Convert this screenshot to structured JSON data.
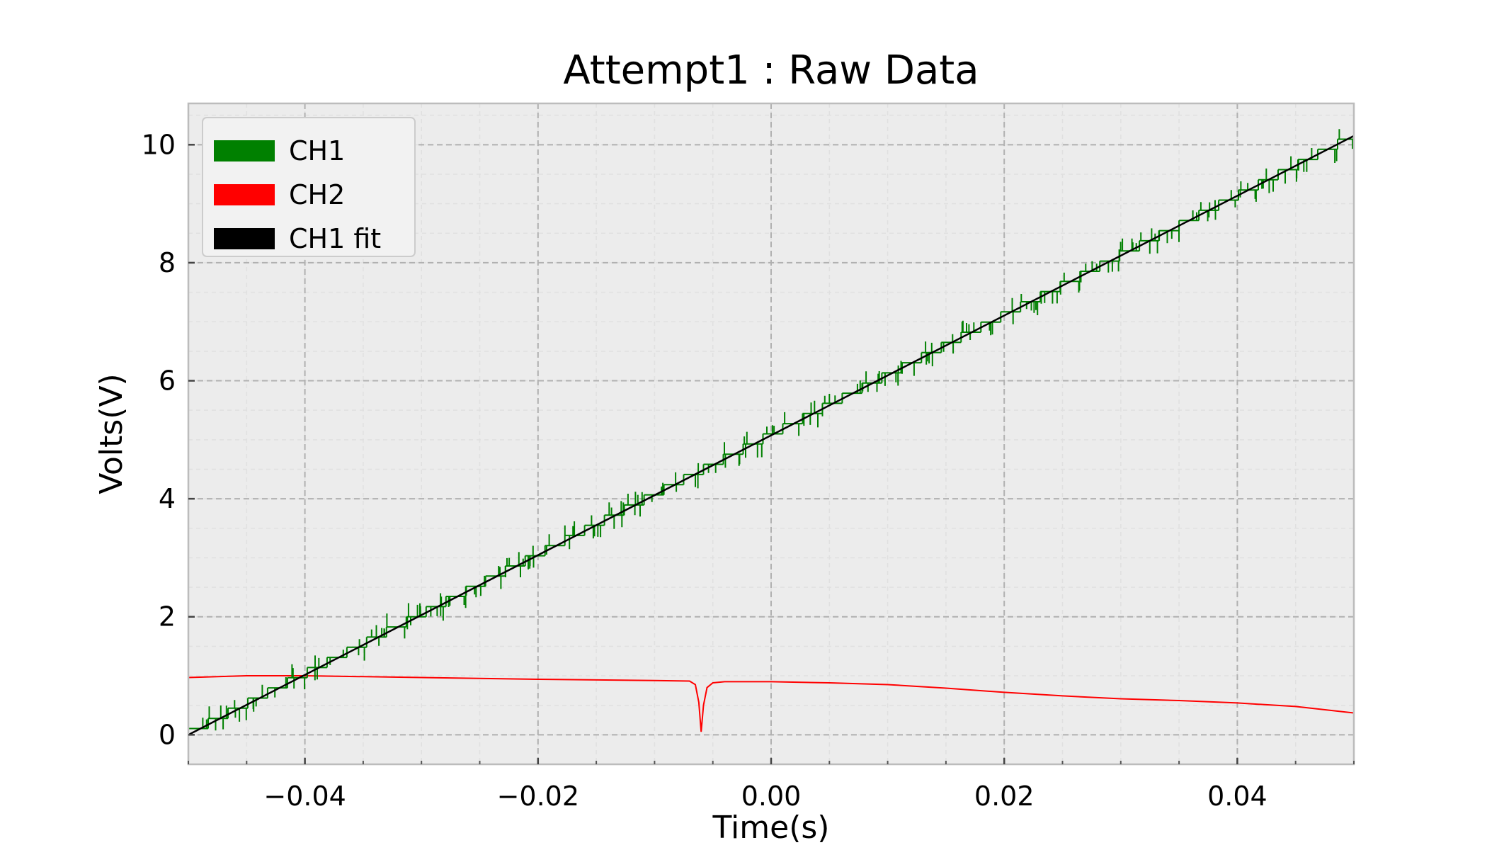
{
  "chart_data": {
    "type": "line",
    "title": "Attempt1 : Raw Data",
    "xlabel": "Time(s)",
    "ylabel": "Volts(V)",
    "xlim": [
      -0.05,
      0.05
    ],
    "ylim": [
      -0.5,
      10.7
    ],
    "x_ticks": [
      -0.04,
      -0.02,
      0.0,
      0.02,
      0.04
    ],
    "x_tick_labels": [
      "−0.04",
      "−0.02",
      "0.00",
      "0.02",
      "0.04"
    ],
    "y_ticks": [
      0,
      2,
      4,
      6,
      8,
      10
    ],
    "y_tick_labels": [
      "0",
      "2",
      "4",
      "6",
      "8",
      "10"
    ],
    "grid": true,
    "legend_position": "top-left",
    "background_color": "#ececec",
    "series": [
      {
        "name": "CH1",
        "color": "#008000",
        "style": "noisy-staircase",
        "x": [
          -0.05,
          0.05
        ],
        "y": [
          0.02,
          10.15
        ],
        "step": 0.0017,
        "noise": 0.12
      },
      {
        "name": "CH2",
        "color": "#ff0000",
        "style": "line",
        "x": [
          -0.05,
          -0.045,
          -0.04,
          -0.03,
          -0.02,
          -0.01,
          -0.007,
          -0.0065,
          -0.0062,
          -0.006,
          -0.0058,
          -0.0055,
          -0.005,
          -0.004,
          0.0,
          0.005,
          0.01,
          0.015,
          0.02,
          0.025,
          0.03,
          0.035,
          0.04,
          0.045,
          0.05
        ],
        "y": [
          0.97,
          1.0,
          1.0,
          0.97,
          0.94,
          0.92,
          0.91,
          0.85,
          0.55,
          0.05,
          0.5,
          0.8,
          0.88,
          0.9,
          0.9,
          0.88,
          0.85,
          0.79,
          0.72,
          0.66,
          0.61,
          0.58,
          0.54,
          0.48,
          0.37
        ]
      },
      {
        "name": "CH1 fit",
        "color": "#000000",
        "style": "line",
        "x": [
          -0.05,
          0.05
        ],
        "y": [
          0.0,
          10.15
        ]
      }
    ]
  }
}
